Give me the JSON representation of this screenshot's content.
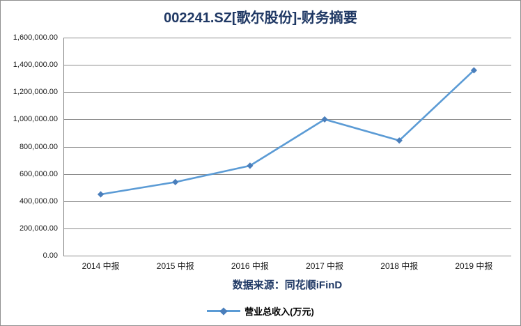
{
  "header": {
    "title": "002241.SZ[歌尔股份]-财务摘要"
  },
  "footer": {
    "source_text": "数据来源：同花顺iFinD"
  },
  "legend": {
    "series_label": "营业总收入(万元)"
  },
  "colors": {
    "navy": "#1F3864",
    "line": "#5B9BD5",
    "marker": "#4A7EBB",
    "grid": "#8C8C8C",
    "axis_text": "#1a1a1a"
  },
  "chart_data": {
    "type": "line",
    "title": "002241.SZ[歌尔股份]-财务摘要",
    "categories": [
      "2014 中报",
      "2015 中报",
      "2016 中报",
      "2017 中报",
      "2018 中报",
      "2019 中报"
    ],
    "series": [
      {
        "name": "营业总收入(万元)",
        "values": [
          450000,
          540000,
          660000,
          1000000,
          845000,
          1360000
        ]
      }
    ],
    "xlabel": "",
    "ylabel": "营业总收入(万元)",
    "ylim": [
      0,
      1600000
    ],
    "y_tick_step": 200000,
    "y_tick_labels": [
      "1,600,000.00",
      "1,400,000.00",
      "1,200,000.00",
      "1,000,000.00",
      "800,000.00",
      "600,000.00",
      "400,000.00",
      "200,000.00",
      "0.00"
    ],
    "grid": true,
    "legend_position": "bottom",
    "source": "数据来源：同花顺iFinD"
  }
}
